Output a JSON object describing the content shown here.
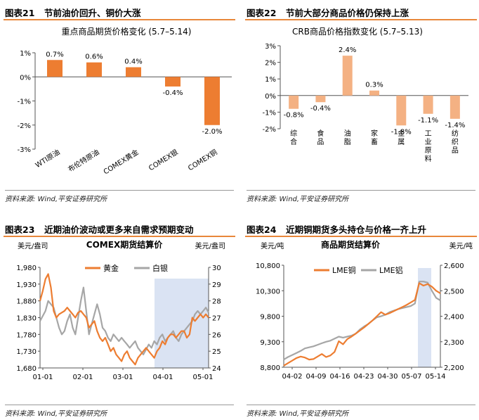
{
  "panels": [
    {
      "num": "图表21",
      "title": "节前油价回升、铜价大涨",
      "source": "资料来源: Wind,平安证券研究所"
    },
    {
      "num": "图表22",
      "title": "节前大部分商品价格仍保持上涨",
      "source": "资料来源: Wind,平安证券研究所"
    },
    {
      "num": "图表23",
      "title": "近期油价波动或更多来自需求预期变动",
      "source": "资料来源: Wind,平安证券研究所"
    },
    {
      "num": "图表24",
      "title": "近期铜期货多头持仓与价格一齐上升",
      "source": "资料来源: Wind,平安证券研究所"
    }
  ],
  "colors": {
    "orange": "#ed7d31",
    "light_orange": "#f4b183",
    "grey": "#a6a6a6",
    "shade": "#dae3f3",
    "rule": "#e8873a"
  },
  "chart_data": [
    {
      "type": "bar",
      "title": "重点商品期货价格变化 (5.7–5.14)",
      "categories": [
        "WTI原油",
        "布伦特原油",
        "COMEX黄金",
        "COMEX银",
        "COMEX铜"
      ],
      "values": [
        0.7,
        0.6,
        0.4,
        -0.4,
        -2.0
      ],
      "labels": [
        "0.7%",
        "0.6%",
        "0.4%",
        "-0.4%",
        "-2.0%"
      ],
      "ylim": [
        -3,
        1
      ],
      "yticks": [
        "1%",
        "0%",
        "-1%",
        "-2%",
        "-3%"
      ],
      "grid": false
    },
    {
      "type": "bar",
      "title": "CRB商品价格指数变化 (5.7–5.13)",
      "categories": [
        "综合",
        "食品",
        "油脂",
        "家畜",
        "金属",
        "工业原料",
        "纺织品"
      ],
      "values": [
        -0.8,
        -0.4,
        2.4,
        0.3,
        -1.8,
        -1.1,
        -1.4
      ],
      "labels": [
        "-0.8%",
        "-0.4%",
        "2.4%",
        "0.3%",
        "-1.8%",
        "-1.1%",
        "-1.4%"
      ],
      "ylim": [
        -2,
        3
      ],
      "yticks": [
        "3%",
        "2%",
        "1%",
        "0%",
        "-1%",
        "-2%"
      ],
      "grid": false
    },
    {
      "type": "line",
      "title": "COMEX期货结算价",
      "ylabel_left": "美元/盎司",
      "ylabel_right": "美元/盎司",
      "yticks_left": [
        "1,980",
        "1,930",
        "1,880",
        "1,830",
        "1,780",
        "1,730",
        "1,680"
      ],
      "yticks_right": [
        "30",
        "29",
        "28",
        "27",
        "26",
        "25",
        "24"
      ],
      "xticks": [
        "01-01",
        "02-01",
        "03-01",
        "04-01",
        "05-01"
      ],
      "ylim_left": [
        1680,
        1980
      ],
      "ylim_right": [
        24,
        30
      ],
      "legend_position": "top-center",
      "shaded_region": [
        "04-01",
        "05-14"
      ],
      "series": [
        {
          "name": "黄金",
          "axis": "left",
          "values": [
            1880,
            1910,
            1945,
            1960,
            1920,
            1850,
            1830,
            1840,
            1845,
            1850,
            1860,
            1850,
            1840,
            1830,
            1845,
            1850,
            1840,
            1830,
            1800,
            1810,
            1820,
            1790,
            1770,
            1760,
            1770,
            1750,
            1730,
            1740,
            1720,
            1710,
            1700,
            1720,
            1730,
            1710,
            1700,
            1690,
            1710,
            1720,
            1730,
            1740,
            1730,
            1720,
            1710,
            1730,
            1740,
            1760,
            1750,
            1770,
            1780,
            1780,
            1770,
            1780,
            1790,
            1790,
            1770,
            1780,
            1830,
            1820,
            1830,
            1840,
            1830,
            1840,
            1830
          ]
        },
        {
          "name": "白银",
          "axis": "left",
          "values": [
            1820,
            1835,
            1850,
            1880,
            1870,
            1860,
            1830,
            1800,
            1780,
            1790,
            1820,
            1840,
            1800,
            1780,
            1830,
            1880,
            1920,
            1850,
            1780,
            1810,
            1840,
            1870,
            1840,
            1800,
            1790,
            1770,
            1760,
            1780,
            1770,
            1760,
            1770,
            1760,
            1750,
            1740,
            1750,
            1760,
            1740,
            1730,
            1720,
            1735,
            1750,
            1740,
            1760,
            1750,
            1770,
            1780,
            1760,
            1770,
            1780,
            1790,
            1770,
            1760,
            1780,
            1790,
            1800,
            1810,
            1820,
            1840,
            1850,
            1840,
            1850,
            1860,
            1845
          ]
        }
      ]
    },
    {
      "type": "line",
      "title": "商品期货结算价",
      "ylabel_left": "美元/吨",
      "ylabel_right": "美元/吨",
      "yticks_left": [
        "10,800",
        "10,300",
        "9,800",
        "9,300",
        "8,800"
      ],
      "yticks_right": [
        "2,600",
        "2,500",
        "2,400",
        "2,300",
        "2,200"
      ],
      "xticks": [
        "04-02",
        "04-09",
        "04-16",
        "04-23",
        "04-30",
        "05-07",
        "05-14"
      ],
      "ylim_left": [
        8800,
        10800
      ],
      "ylim_right": [
        2200,
        2600
      ],
      "legend_position": "top-left",
      "shaded_region": [
        "05-07",
        "05-14"
      ],
      "series": [
        {
          "name": "LME铜",
          "axis": "left",
          "values": [
            8830,
            8880,
            8930,
            8980,
            9010,
            8990,
            8950,
            8960,
            9010,
            9060,
            9000,
            9030,
            9100,
            9310,
            9250,
            9350,
            9400,
            9460,
            9520,
            9580,
            9650,
            9720,
            9800,
            9880,
            9830,
            9860,
            9900,
            9940,
            9980,
            10020,
            10070,
            10120,
            10450,
            10400,
            10430,
            10380,
            10300,
            10250
          ]
        },
        {
          "name": "LME铝",
          "axis": "left",
          "values": [
            8950,
            9000,
            9040,
            9080,
            9120,
            9170,
            9190,
            9210,
            9240,
            9270,
            9300,
            9320,
            9360,
            9400,
            9380,
            9400,
            9420,
            9460,
            9540,
            9600,
            9650,
            9720,
            9780,
            9800,
            9830,
            9880,
            9910,
            9940,
            9960,
            9980,
            10000,
            10050,
            10480,
            10480,
            10460,
            10300,
            10160,
            10110
          ]
        }
      ]
    }
  ]
}
